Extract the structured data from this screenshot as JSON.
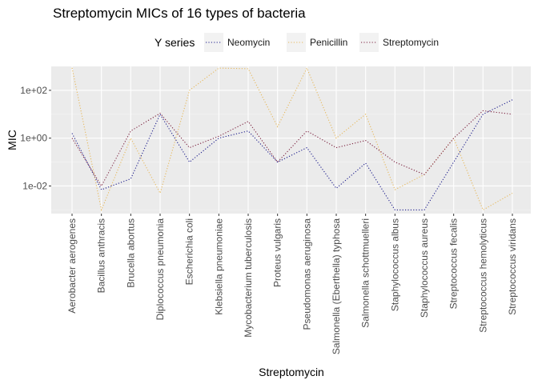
{
  "chart_data": {
    "type": "line",
    "title": "Streptomycin MICs of 16 types of bacteria",
    "xlabel": "Streptomycin",
    "ylabel": "MIC",
    "y_scale": "log10",
    "ylim": [
      0.0007,
      1000
    ],
    "y_ticks": [
      {
        "value": 0.01,
        "label": "1e-02"
      },
      {
        "value": 1,
        "label": "1e+00"
      },
      {
        "value": 100,
        "label": "1e+02"
      }
    ],
    "grid": true,
    "legend": {
      "title": "Y series",
      "position": "top"
    },
    "categories": [
      "Aerobacter aerogenes",
      "Bacillus anthracis",
      "Brucella abortus",
      "Diplococcus pneumonia",
      "Escherichia coli",
      "Klebsiella pneumoniae",
      "Mycobacterium tuberculosis",
      "Proteus vulgaris",
      "Pseudomonas aeruginosa",
      "Salmonella (Eberthella) typhosa",
      "Salmonella schottmuelleri",
      "Staphylococcus albus",
      "Staphylococcus aureus",
      "Streptococcus fecalis",
      "Streptococcus hemolyticus",
      "Streptococcus viridans"
    ],
    "series": [
      {
        "name": "Neomycin",
        "color": "#1c1c8c",
        "values": [
          1.6,
          0.007,
          0.02,
          10,
          0.1,
          1,
          2,
          0.1,
          0.4,
          0.008,
          0.09,
          0.001,
          0.001,
          0.1,
          10,
          40
        ]
      },
      {
        "name": "Penicillin",
        "color": "#e6b85c",
        "values": [
          870,
          0.001,
          1,
          0.005,
          100,
          850,
          800,
          3,
          850,
          1,
          10,
          0.007,
          0.03,
          1,
          0.001,
          0.005
        ]
      },
      {
        "name": "Streptomycin",
        "color": "#7a1f3d",
        "values": [
          1,
          0.01,
          2,
          11,
          0.4,
          1.2,
          5,
          0.1,
          2,
          0.4,
          0.8,
          0.1,
          0.03,
          1,
          14,
          10
        ]
      }
    ]
  }
}
